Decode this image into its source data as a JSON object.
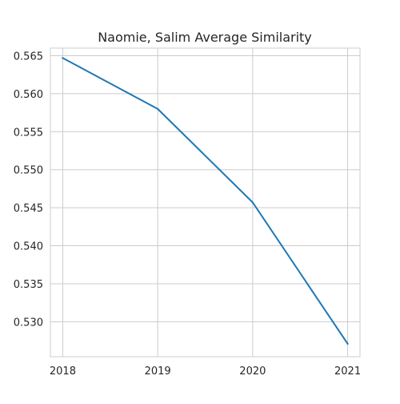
{
  "chart_data": {
    "type": "line",
    "title": "Naomie, Salim Average Similarity",
    "xlabel": "",
    "ylabel": "",
    "x": [
      "2018",
      "2019",
      "2020",
      "2021"
    ],
    "series": [
      {
        "values": [
          0.5647,
          0.558,
          0.5457,
          0.5271
        ]
      }
    ],
    "xlim": [
      2017.87,
      2021.13
    ],
    "ylim": [
      0.5254,
      0.566
    ],
    "yticks": [
      0.53,
      0.535,
      0.54,
      0.545,
      0.55,
      0.555,
      0.56,
      0.565
    ],
    "ytick_labels": [
      "0.530",
      "0.535",
      "0.540",
      "0.545",
      "0.550",
      "0.555",
      "0.560",
      "0.565"
    ],
    "grid": true,
    "colors": {
      "line": "#1f77b4",
      "grid": "#cccccc",
      "axes_edge": "#cccccc",
      "text": "#262626"
    }
  }
}
